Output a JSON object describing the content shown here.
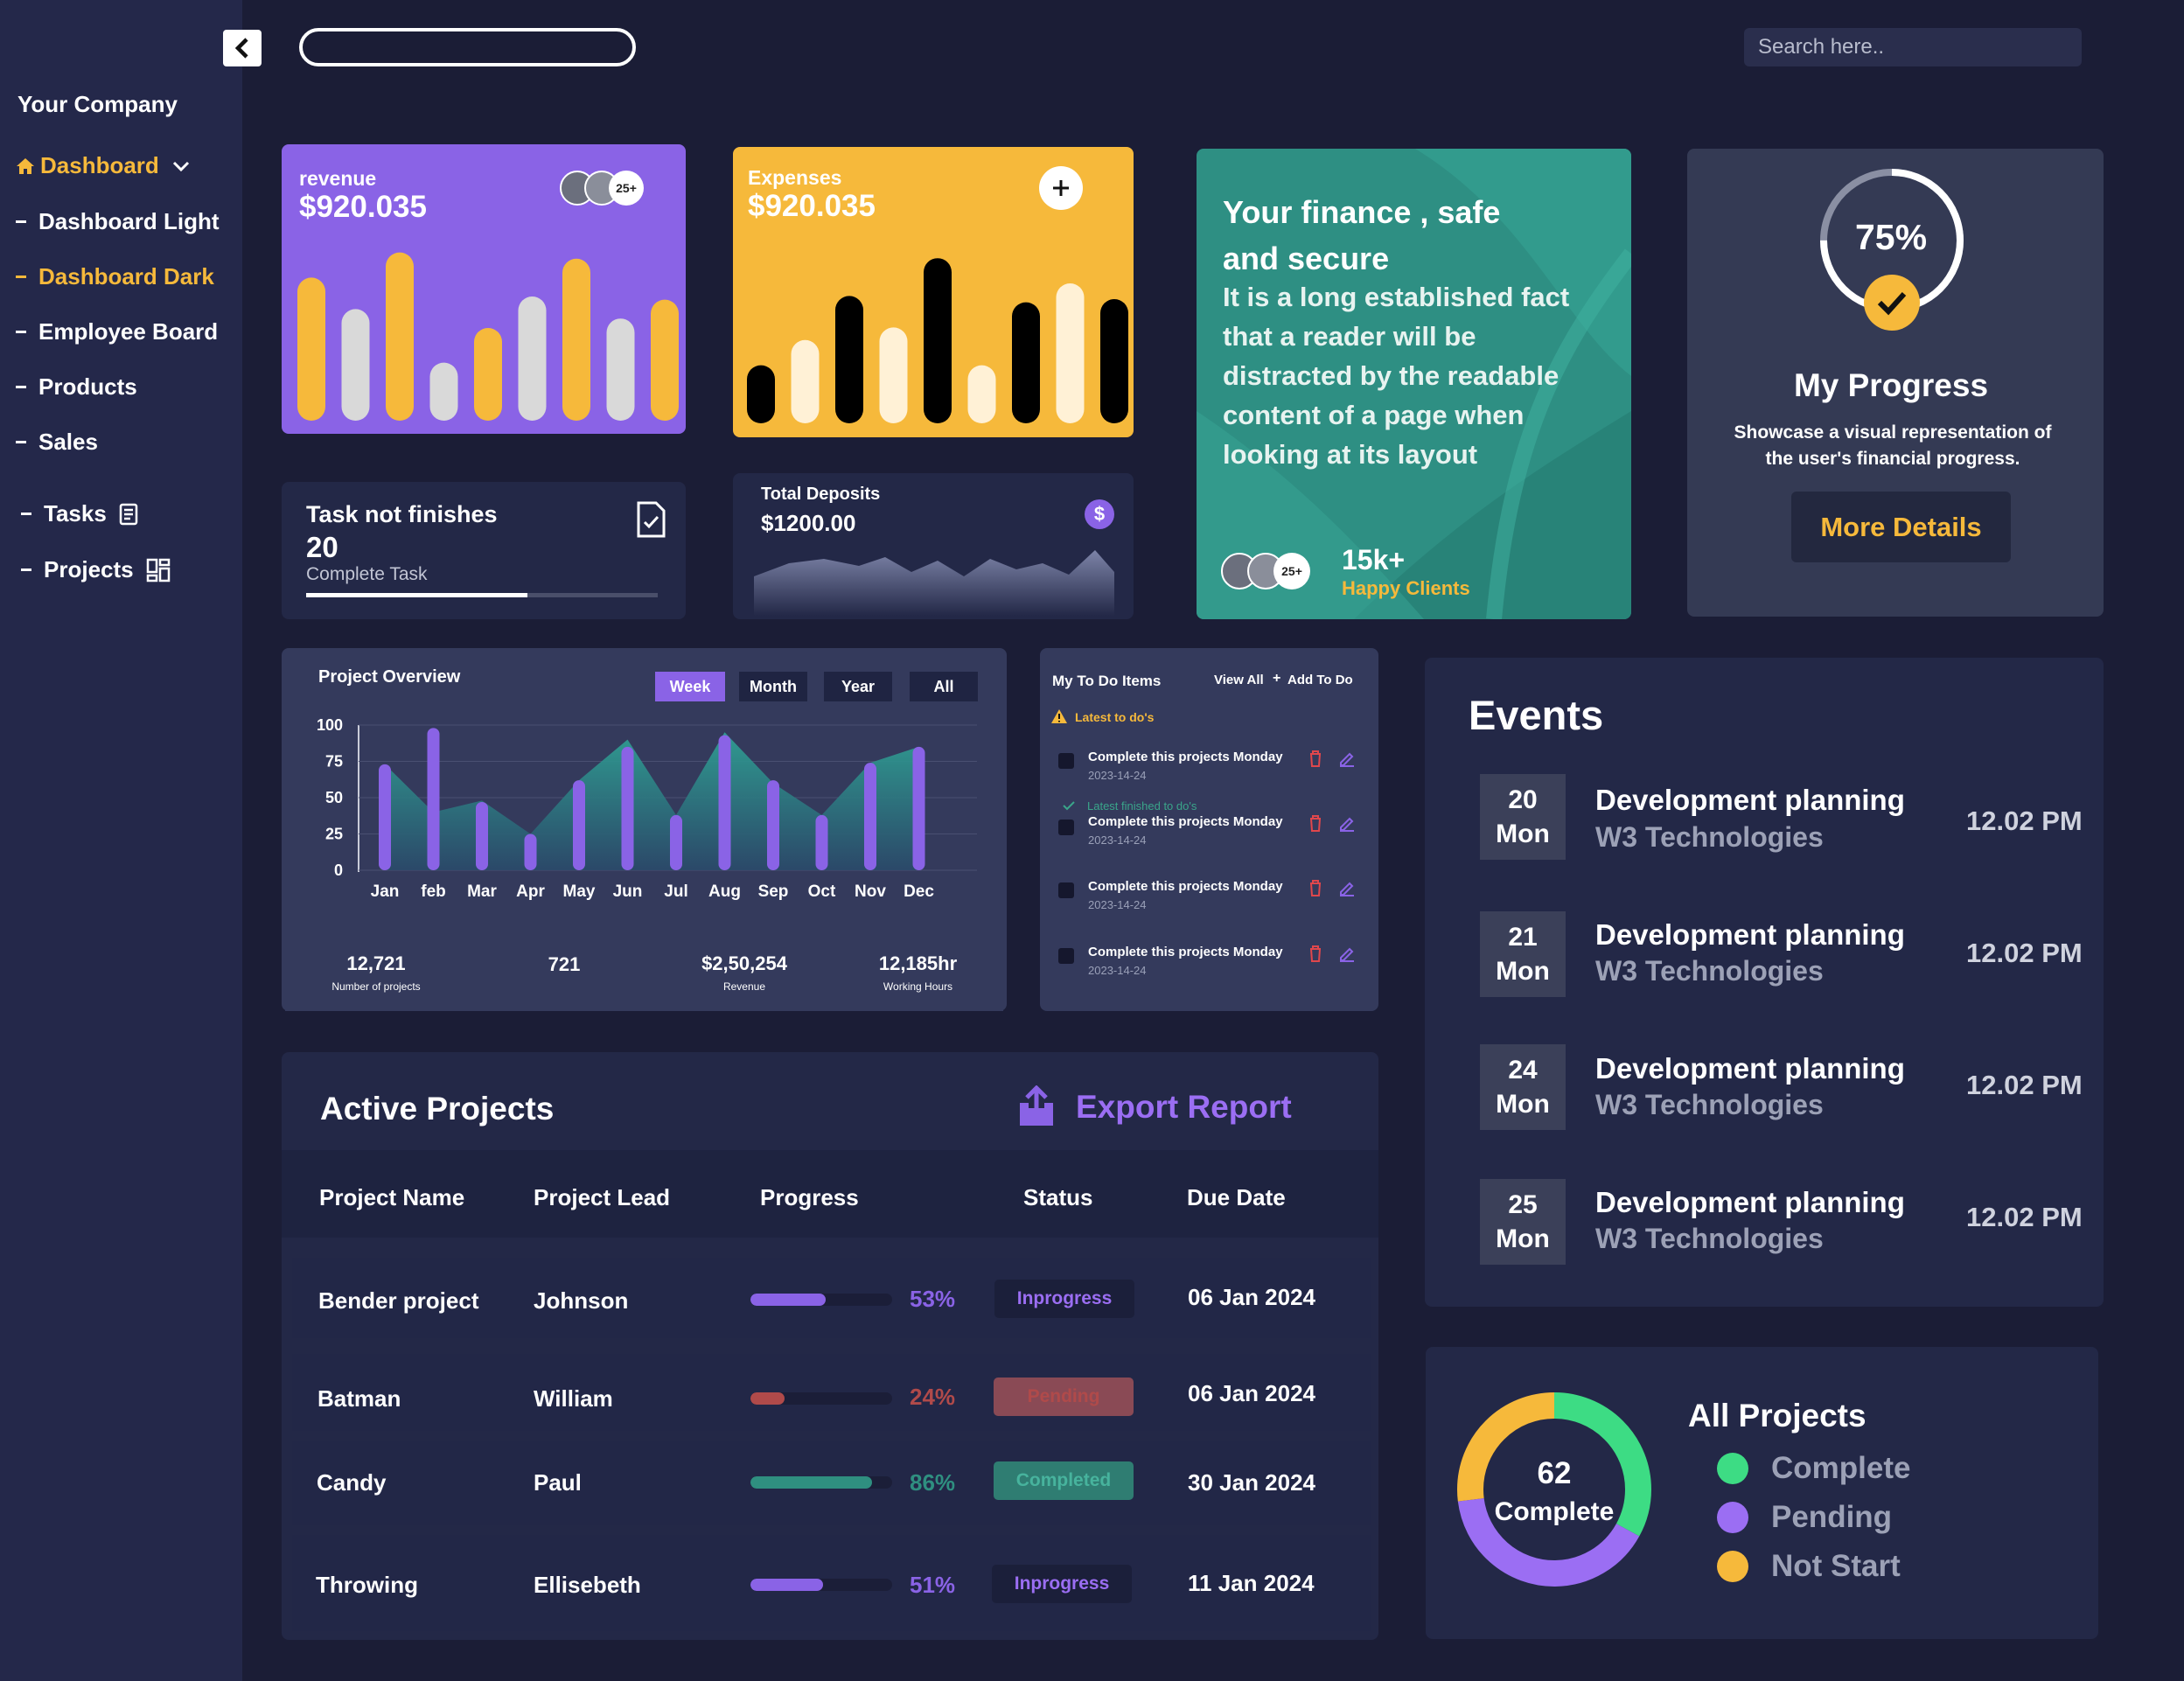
{
  "sidebar": {
    "company": "Your Company",
    "items": [
      {
        "label": "Dashboard"
      },
      {
        "label": "Dashboard Light"
      },
      {
        "label": "Dashboard Dark"
      },
      {
        "label": "Employee Board"
      },
      {
        "label": "Products"
      },
      {
        "label": "Sales"
      },
      {
        "label": "Tasks"
      },
      {
        "label": "Projects"
      }
    ]
  },
  "search": {
    "placeholder": "Search here.."
  },
  "revenue": {
    "label": "revenue",
    "amount": "$920.035",
    "avatar_count": "25+",
    "bars": [
      0.82,
      0.62,
      0.98,
      0.28,
      0.5,
      0.7,
      0.94,
      0.56,
      0.68
    ]
  },
  "expenses": {
    "label": "Expenses",
    "amount": "$920.035",
    "bars": [
      0.28,
      0.44,
      0.72,
      0.52,
      0.96,
      0.28,
      0.68,
      0.8,
      0.7
    ]
  },
  "finance": {
    "title": "Your finance , safe and secure",
    "body": "It is a long established fact that a reader will be distracted by the readable content of a page when looking at its layout",
    "clients_count": "15k+",
    "clients_label": "Happy Clients",
    "avatar_count": "25+"
  },
  "progress": {
    "percent": "75%",
    "value": 0.75,
    "title": "My Progress",
    "description": "Showcase a visual representation of the user's financial progress.",
    "button": "More Details"
  },
  "tasks": {
    "label": "Task not finishes",
    "count": "20",
    "sub": "Complete Task",
    "progress": 0.63
  },
  "deposits": {
    "label": "Total Deposits",
    "amount": "$1200.00",
    "icon": "dollar-icon"
  },
  "overview": {
    "title": "Project Overview",
    "tabs": [
      "Week",
      "Month",
      "Year",
      "All"
    ],
    "stats": [
      {
        "value": "12,721",
        "label": "Number of projects"
      },
      {
        "value": "721",
        "label": ""
      },
      {
        "value": "$2,50,254",
        "label": "Revenue"
      },
      {
        "value": "12,185hr",
        "label": "Working Hours"
      }
    ]
  },
  "chart_data": {
    "type": "bar",
    "categories": [
      "Jan",
      "feb",
      "Mar",
      "Apr",
      "May",
      "Jun",
      "Jul",
      "Aug",
      "Sep",
      "Oct",
      "Nov",
      "Dec"
    ],
    "values": [
      73,
      98,
      47,
      25,
      62,
      85,
      38,
      93,
      62,
      38,
      74,
      85
    ],
    "area_values": [
      73,
      40,
      48,
      25,
      62,
      90,
      38,
      95,
      60,
      38,
      74,
      85
    ],
    "yticks": [
      0,
      25,
      50,
      75,
      100
    ],
    "ylim": [
      0,
      100
    ],
    "title": "Project Overview"
  },
  "todo": {
    "title": "My To Do Items",
    "view_all": "View All",
    "add": "Add To Do",
    "latest": "Latest to do's",
    "finished": "Latest finished to do's",
    "items": [
      {
        "text": "Complete this projects Monday",
        "date": "2023-14-24"
      },
      {
        "text": "Complete this projects Monday",
        "date": "2023-14-24"
      },
      {
        "text": "Complete this projects Monday",
        "date": "2023-14-24"
      },
      {
        "text": "Complete this projects Monday",
        "date": "2023-14-24"
      }
    ]
  },
  "active": {
    "title": "Active Projects",
    "export": "Export Report",
    "headers": [
      "Project Name",
      "Project Lead",
      "Progress",
      "Status",
      "Due Date"
    ],
    "rows": [
      {
        "name": "Bender project",
        "lead": "Johnson",
        "progress": "53%",
        "value": 0.53,
        "status": "Inprogress",
        "due": "06 Jan 2024",
        "color": "#8a63e6"
      },
      {
        "name": "Batman",
        "lead": "William",
        "progress": "24%",
        "value": 0.24,
        "status": "Pending",
        "due": "06 Jan 2024",
        "color": "#b04a4a"
      },
      {
        "name": "Candy",
        "lead": "Paul",
        "progress": "86%",
        "value": 0.86,
        "status": "Completed",
        "due": "30 Jan 2024",
        "color": "#2f8f80"
      },
      {
        "name": "Throwing",
        "lead": "Ellisebeth",
        "progress": "51%",
        "value": 0.51,
        "status": "Inprogress",
        "due": "11  Jan 2024",
        "color": "#8a63e6"
      }
    ]
  },
  "events": {
    "title": "Events",
    "items": [
      {
        "day": "20",
        "weekday": "Mon",
        "title": "Development planning",
        "company": "W3 Technologies",
        "time": "12.02 PM"
      },
      {
        "day": "21",
        "weekday": "Mon",
        "title": "Development planning",
        "company": "W3 Technologies",
        "time": "12.02 PM"
      },
      {
        "day": "24",
        "weekday": "Mon",
        "title": "Development planning",
        "company": "W3 Technologies",
        "time": "12.02 PM"
      },
      {
        "day": "25",
        "weekday": "Mon",
        "title": "Development planning",
        "company": "W3 Technologies",
        "time": "12.02 PM"
      }
    ]
  },
  "all_projects": {
    "title": "All Projects",
    "center_value": "62",
    "center_label": "Complete",
    "legend": [
      {
        "label": "Complete",
        "color": "#3ddc84"
      },
      {
        "label": "Pending",
        "color": "#9b6ef3"
      },
      {
        "label": "Not Start",
        "color": "#f6b93b"
      }
    ],
    "shares": [
      0.33,
      0.4,
      0.27
    ]
  },
  "colors": {
    "accent": "#f6b93b",
    "purple": "#8a63e6",
    "teal": "#2f8f80",
    "background": "#1b1d36"
  }
}
